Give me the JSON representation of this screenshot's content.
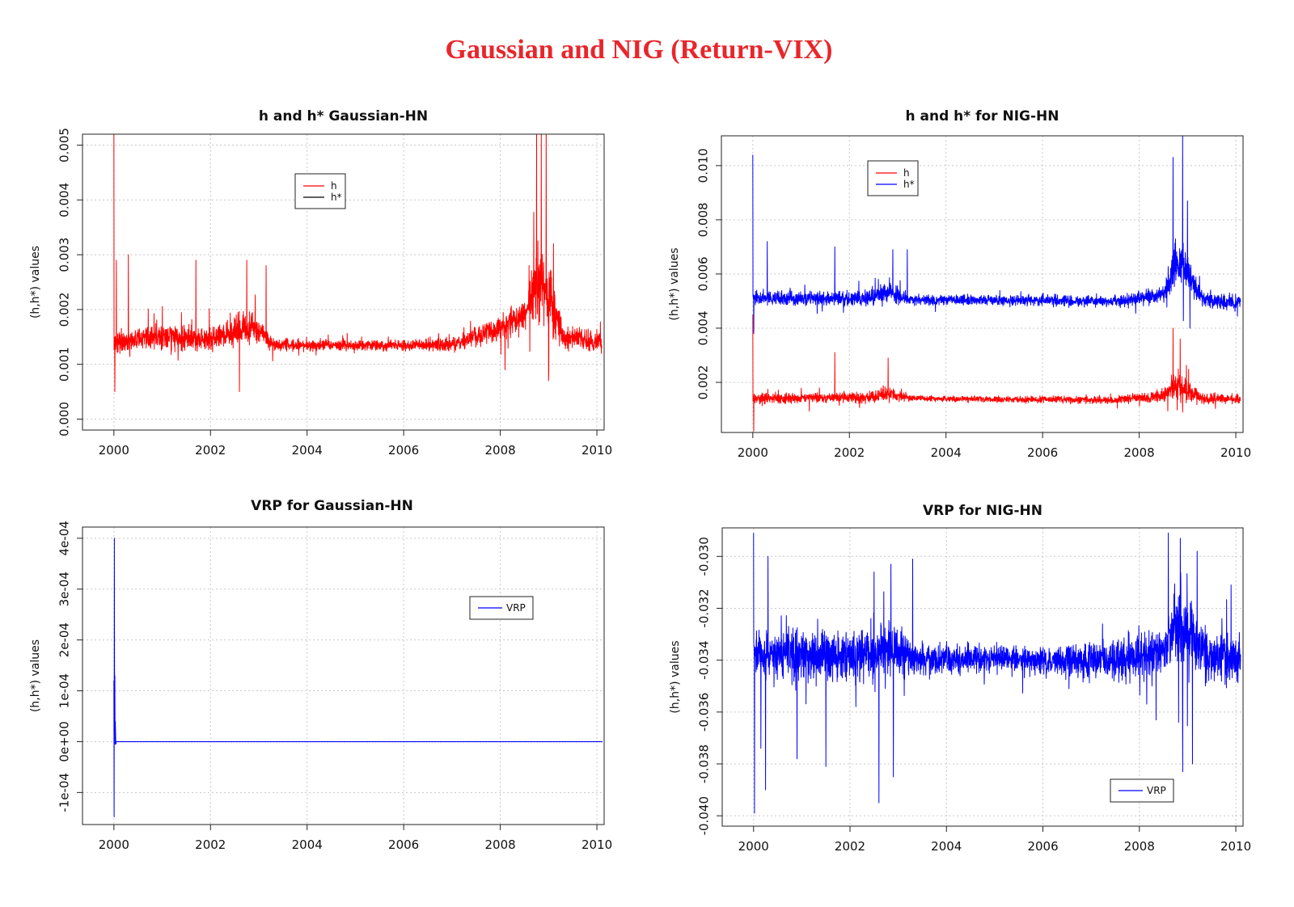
{
  "figure_title": "Gaussian and NIG (Return-VIX)",
  "colors": {
    "h": "#ff0000",
    "h_star": "#0000ff",
    "vrp": "#0000ff",
    "title": "#e8262b",
    "grid": "#c8c8c8"
  },
  "chart_data": [
    {
      "id": "gauss-h",
      "type": "line",
      "title": "h and h* Gaussian-HN",
      "xlabel": "",
      "ylabel": "(h,h*) values",
      "xlim": [
        1999.35,
        2010.15
      ],
      "ylim": [
        -0.0002,
        0.0052
      ],
      "x_ticks": [
        2000,
        2002,
        2004,
        2006,
        2008,
        2010
      ],
      "x_tick_labels": [
        "2000",
        "2002",
        "2004",
        "2006",
        "2008",
        "2010"
      ],
      "y_ticks": [
        0.0,
        0.001,
        0.002,
        0.003,
        0.004,
        0.005
      ],
      "y_tick_labels": [
        "0.000",
        "0.001",
        "0.002",
        "0.003",
        "0.004",
        "0.005"
      ],
      "grid": true,
      "legend": {
        "position": "top-center",
        "entries": [
          "h",
          "h*"
        ]
      },
      "series": [
        {
          "name": "h",
          "color": "#ff0000",
          "x_start": 2000.0,
          "x_end": 2010.1,
          "level_x": [
            2000.0,
            2001.0,
            2002.0,
            2002.5,
            2002.9,
            2003.3,
            2005.0,
            2007.0,
            2007.8,
            2008.5,
            2008.8,
            2009.0,
            2009.3,
            2010.1
          ],
          "level_y": [
            0.0014,
            0.0015,
            0.00145,
            0.0016,
            0.0017,
            0.00135,
            0.00135,
            0.00135,
            0.0016,
            0.0019,
            0.0026,
            0.0022,
            0.0015,
            0.0014
          ],
          "noise_x": [
            2000.0,
            2001.0,
            2002.0,
            2002.5,
            2002.9,
            2003.3,
            2005.0,
            2007.0,
            2007.8,
            2008.5,
            2008.8,
            2009.0,
            2009.3,
            2010.1
          ],
          "noise_y": [
            0.00026,
            0.00032,
            0.0003,
            0.00038,
            0.0004,
            0.00018,
            0.00012,
            0.00018,
            0.0003,
            0.0004,
            0.001,
            0.0009,
            0.00032,
            0.00026
          ],
          "spikes": [
            [
              2000.0,
              0.0055
            ],
            [
              2000.02,
              0.0005
            ],
            [
              2000.05,
              0.0029
            ],
            [
              2000.3,
              0.003
            ],
            [
              2001.7,
              0.0029
            ],
            [
              2002.6,
              0.0027
            ],
            [
              2002.75,
              0.0029
            ],
            [
              2003.15,
              0.0028
            ],
            [
              2002.6,
              0.0005
            ],
            [
              2008.75,
              0.0055
            ],
            [
              2008.85,
              0.0053
            ],
            [
              2008.95,
              0.0055
            ],
            [
              2009.1,
              0.0032
            ],
            [
              2009.0,
              0.0007
            ],
            [
              2008.1,
              0.0029
            ],
            [
              2008.1,
              0.0009
            ]
          ]
        }
      ]
    },
    {
      "id": "nig-h",
      "type": "line",
      "title": "h and h* for NIG-HN",
      "xlabel": "",
      "ylabel": "(h,h*) values",
      "xlim": [
        1999.35,
        2010.15
      ],
      "ylim": [
        0.00015,
        0.0111
      ],
      "x_ticks": [
        2000,
        2002,
        2004,
        2006,
        2008,
        2010
      ],
      "x_tick_labels": [
        "2000",
        "2002",
        "2004",
        "2006",
        "2008",
        "2010"
      ],
      "y_ticks": [
        0.002,
        0.004,
        0.006,
        0.008,
        0.01
      ],
      "y_tick_labels": [
        "0.002",
        "0.004",
        "0.006",
        "0.008",
        "0.010"
      ],
      "grid": true,
      "legend": {
        "position": "top-left",
        "entries": [
          "h",
          "h*"
        ]
      },
      "series": [
        {
          "name": "h",
          "color": "#ff0000",
          "x_start": 2000.0,
          "x_end": 2010.1,
          "level_x": [
            2000.0,
            2002.4,
            2002.8,
            2003.3,
            2007.5,
            2008.5,
            2008.8,
            2009.0,
            2009.3,
            2010.1
          ],
          "level_y": [
            0.0014,
            0.00145,
            0.0016,
            0.0014,
            0.00135,
            0.0015,
            0.0019,
            0.0017,
            0.0014,
            0.0014
          ],
          "noise_x": [
            2000.0,
            2002.4,
            2002.8,
            2003.3,
            2007.5,
            2008.5,
            2008.8,
            2009.0,
            2009.3,
            2010.1
          ],
          "noise_y": [
            0.00025,
            0.00028,
            0.00035,
            0.00015,
            0.00018,
            0.0003,
            0.0008,
            0.0006,
            0.00028,
            0.00025
          ],
          "spikes": [
            [
              2000.0,
              0.0045
            ],
            [
              2000.02,
              0.0002
            ],
            [
              2001.7,
              0.0031
            ],
            [
              2002.8,
              0.0029
            ],
            [
              2008.7,
              0.004
            ],
            [
              2008.85,
              0.0036
            ],
            [
              2008.9,
              0.0009
            ]
          ]
        },
        {
          "name": "h*",
          "color": "#0000ff",
          "x_start": 2000.0,
          "x_end": 2010.1,
          "level_x": [
            2000.0,
            2002.4,
            2002.8,
            2003.3,
            2007.5,
            2008.5,
            2008.8,
            2009.0,
            2009.3,
            2010.1
          ],
          "level_y": [
            0.0051,
            0.0051,
            0.0053,
            0.00505,
            0.005,
            0.0052,
            0.0066,
            0.006,
            0.0051,
            0.0049
          ],
          "noise_x": [
            2000.0,
            2002.4,
            2002.8,
            2003.3,
            2007.5,
            2008.5,
            2008.8,
            2009.0,
            2009.3,
            2010.1
          ],
          "noise_y": [
            0.00035,
            0.0004,
            0.0005,
            0.00025,
            0.0003,
            0.00045,
            0.0013,
            0.0009,
            0.0004,
            0.00035
          ],
          "spikes": [
            [
              2000.0,
              0.0104
            ],
            [
              2000.02,
              0.0038
            ],
            [
              2000.3,
              0.0072
            ],
            [
              2001.7,
              0.007
            ],
            [
              2002.6,
              0.0058
            ],
            [
              2002.9,
              0.0069
            ],
            [
              2003.2,
              0.0069
            ],
            [
              2008.7,
              0.0103
            ],
            [
              2008.9,
              0.0111
            ],
            [
              2009.0,
              0.0087
            ],
            [
              2009.05,
              0.004
            ]
          ]
        }
      ]
    },
    {
      "id": "gauss-vrp",
      "type": "line",
      "title": "VRP for  Gaussian-HN",
      "xlabel": "",
      "ylabel": "(h,h*) values",
      "xlim": [
        1999.35,
        2010.15
      ],
      "ylim": [
        -0.000163,
        0.000422
      ],
      "x_ticks": [
        2000,
        2002,
        2004,
        2006,
        2008,
        2010
      ],
      "x_tick_labels": [
        "2000",
        "2002",
        "2004",
        "2006",
        "2008",
        "2010"
      ],
      "y_ticks": [
        -0.0001,
        0.0,
        0.0001,
        0.0002,
        0.0003,
        0.0004
      ],
      "y_tick_labels": [
        "-1e-04",
        "0e+00",
        "1e-04",
        "2e-04",
        "3e-04",
        "4e-04"
      ],
      "grid": true,
      "legend": {
        "position": "top-right",
        "entries": [
          "VRP"
        ]
      },
      "series": [
        {
          "name": "VRP",
          "color": "#0000ff",
          "x": [
            2000.0,
            2000.005,
            2000.01,
            2000.015,
            2000.02,
            2000.025,
            2000.03,
            2000.04,
            2000.05,
            2000.07,
            2010.1
          ],
          "y": [
            0.00012,
            -0.000148,
            0.0004,
            2.5e-05,
            0.00013,
            -5e-06,
            4e-05,
            -5e-06,
            0.0,
            0.0,
            0.0
          ]
        }
      ]
    },
    {
      "id": "nig-vrp",
      "type": "line",
      "title": "VRP for NIG-HN",
      "xlabel": "",
      "ylabel": "(h,h*) values",
      "xlim": [
        1999.35,
        2010.15
      ],
      "ylim": [
        -0.0404,
        -0.0289
      ],
      "x_ticks": [
        2000,
        2002,
        2004,
        2006,
        2008,
        2010
      ],
      "x_tick_labels": [
        "2000",
        "2002",
        "2004",
        "2006",
        "2008",
        "2010"
      ],
      "y_ticks": [
        -0.04,
        -0.038,
        -0.036,
        -0.034,
        -0.032,
        -0.03
      ],
      "y_tick_labels": [
        "-0.040",
        "-0.038",
        "-0.036",
        "-0.034",
        "-0.032",
        "-0.030"
      ],
      "grid": true,
      "legend": {
        "position": "bottom-right",
        "entries": [
          "VRP"
        ]
      },
      "series": [
        {
          "name": "VRP",
          "color": "#0000ff",
          "x_start": 2000.0,
          "x_end": 2010.1,
          "level_x": [
            2000.0,
            2002.4,
            2002.8,
            2003.3,
            2005.0,
            2007.5,
            2008.5,
            2008.8,
            2009.0,
            2009.3,
            2010.1
          ],
          "level_y": [
            -0.0338,
            -0.0338,
            -0.0335,
            -0.0339,
            -0.034,
            -0.034,
            -0.0336,
            -0.0325,
            -0.033,
            -0.0338,
            -0.034
          ],
          "noise_x": [
            2000.0,
            2002.4,
            2002.8,
            2003.3,
            2005.0,
            2007.5,
            2008.5,
            2008.8,
            2009.0,
            2009.3,
            2010.1
          ],
          "noise_y": [
            0.0012,
            0.0014,
            0.0016,
            0.0009,
            0.0007,
            0.001,
            0.0014,
            0.0025,
            0.0022,
            0.0014,
            0.0012
          ],
          "spikes": [
            [
              2000.0,
              -0.0291
            ],
            [
              2000.02,
              -0.0399
            ],
            [
              2000.15,
              -0.0374
            ],
            [
              2000.3,
              -0.03
            ],
            [
              2000.25,
              -0.039
            ],
            [
              2000.9,
              -0.0378
            ],
            [
              2001.5,
              -0.0381
            ],
            [
              2002.5,
              -0.0306
            ],
            [
              2002.6,
              -0.0395
            ],
            [
              2002.85,
              -0.0303
            ],
            [
              2002.9,
              -0.0385
            ],
            [
              2003.3,
              -0.0301
            ],
            [
              2008.6,
              -0.0291
            ],
            [
              2008.85,
              -0.0293
            ],
            [
              2008.9,
              -0.0383
            ],
            [
              2009.1,
              -0.038
            ],
            [
              2009.2,
              -0.0298
            ],
            [
              2009.9,
              -0.0311
            ]
          ]
        }
      ]
    }
  ]
}
